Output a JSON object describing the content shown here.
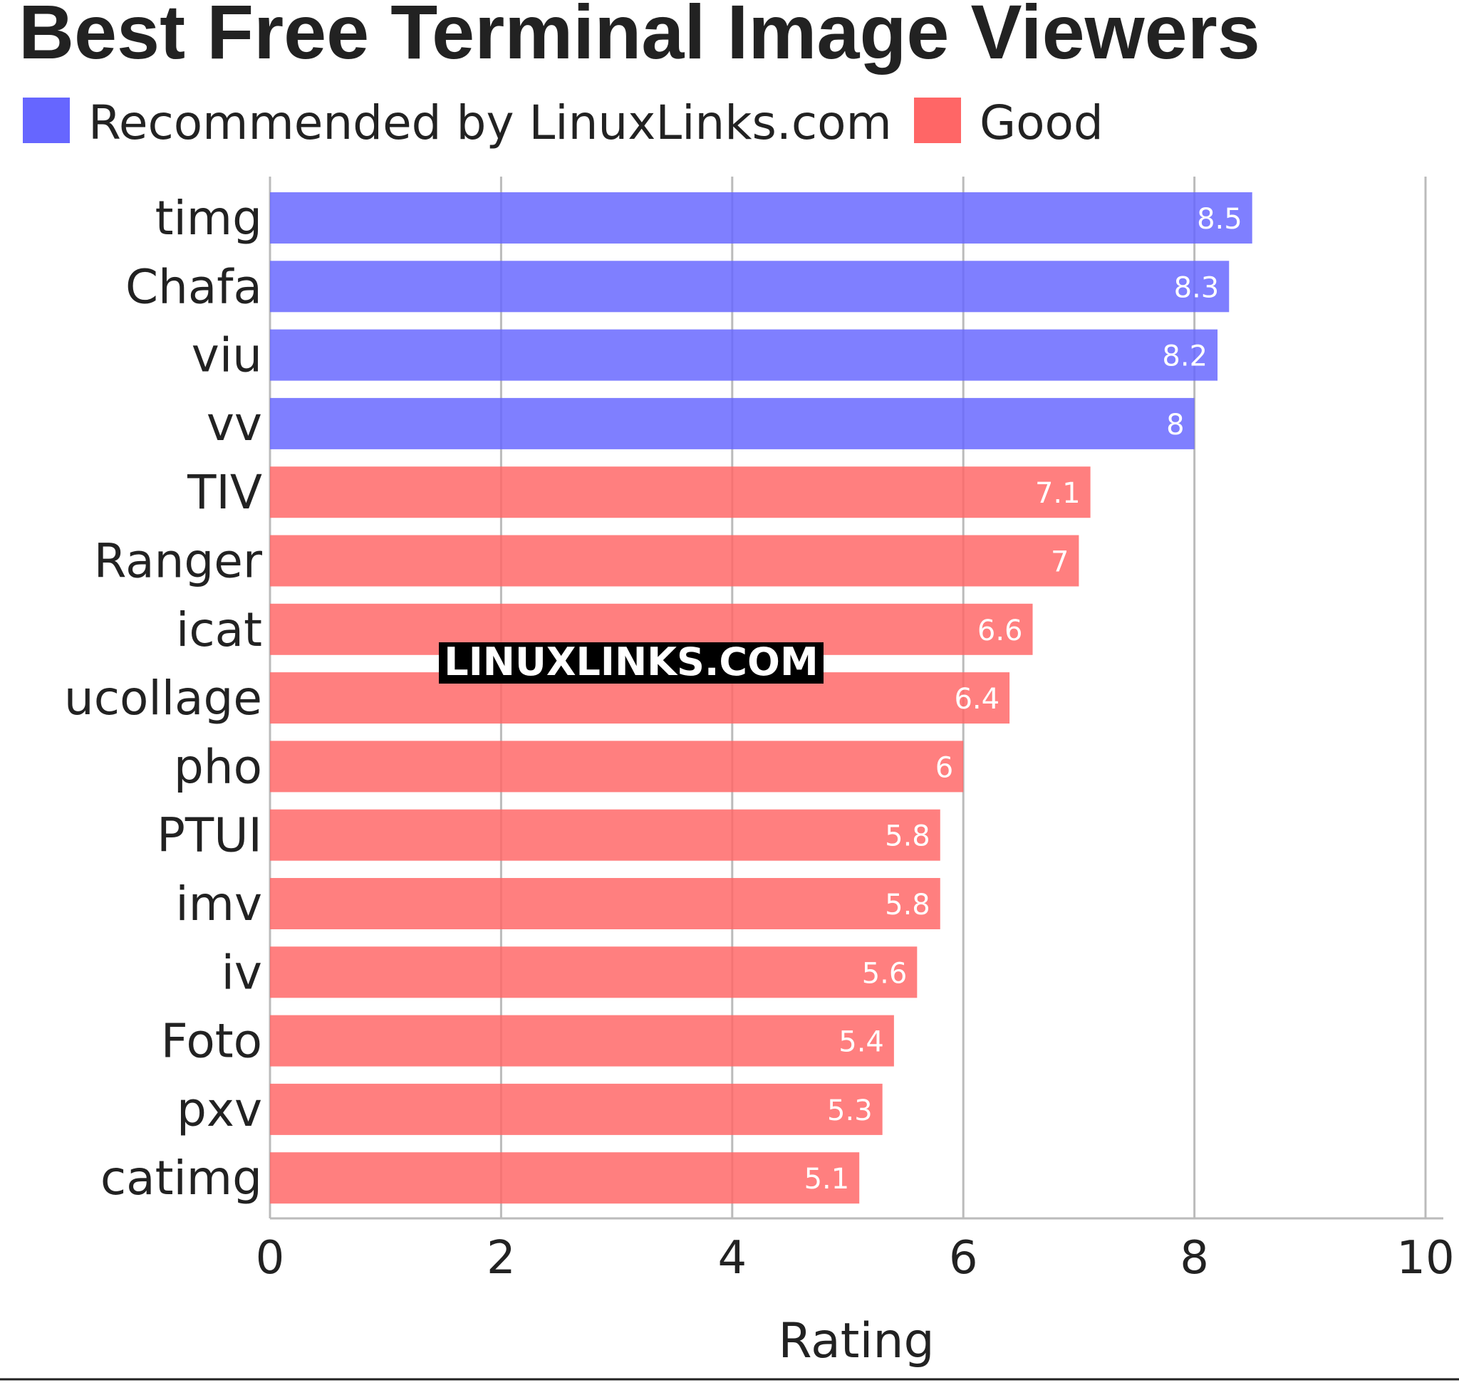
{
  "chart_data": {
    "type": "bar",
    "orientation": "horizontal",
    "title": "Best Free Terminal Image Viewers",
    "xlabel": "Rating",
    "ylabel": "",
    "xlim": [
      0,
      10
    ],
    "xticks": [
      "0",
      "2",
      "4",
      "6",
      "8",
      "10"
    ],
    "grid": true,
    "legend_placement": "top-left",
    "categories": [
      "timg",
      "Chafa",
      "viu",
      "vv",
      "TIV",
      "Ranger",
      "icat",
      "ucollage",
      "pho",
      "PTUI",
      "imv",
      "iv",
      "Foto",
      "pxv",
      "catimg"
    ],
    "values": [
      8.5,
      8.3,
      8.2,
      8,
      7.1,
      7,
      6.6,
      6.4,
      6,
      5.8,
      5.8,
      5.6,
      5.4,
      5.3,
      5.1
    ],
    "value_labels": [
      "8.5",
      "8.3",
      "8.2",
      "8",
      "7.1",
      "7",
      "6.6",
      "6.4",
      "6",
      "5.8",
      "5.8",
      "5.6",
      "5.4",
      "5.3",
      "5.1"
    ],
    "groups": [
      "Recommended by LinuxLinks.com",
      "Recommended by LinuxLinks.com",
      "Recommended by LinuxLinks.com",
      "Recommended by LinuxLinks.com",
      "Good",
      "Good",
      "Good",
      "Good",
      "Good",
      "Good",
      "Good",
      "Good",
      "Good",
      "Good",
      "Good"
    ],
    "legend": [
      {
        "name": "Recommended by LinuxLinks.com",
        "color": "#6666ff"
      },
      {
        "name": "Good",
        "color": "#ff6666"
      }
    ],
    "colors": {
      "grid": "#bbbbbb",
      "axis": "#bbbbbb",
      "text": "#222222",
      "value_text": "#ffffff"
    }
  },
  "watermark": "LINUXLINKS.COM"
}
